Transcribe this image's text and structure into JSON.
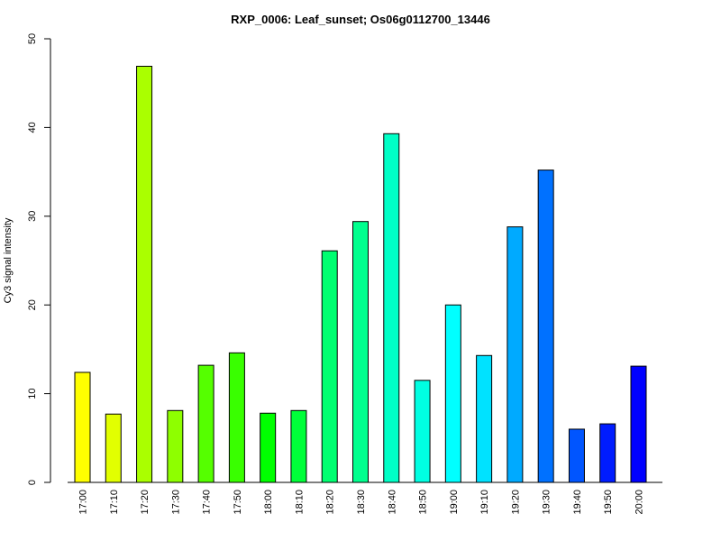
{
  "chart_data": {
    "type": "bar",
    "title": "RXP_0006: Leaf_sunset; Os06g0112700_13446",
    "xlabel": "",
    "ylabel": "Cy3 signal intensity",
    "ylim": [
      0,
      50
    ],
    "yticks": [
      "0",
      "10",
      "20",
      "30",
      "40",
      "50"
    ],
    "grid": false,
    "categories": [
      "17:00",
      "17:10",
      "17:20",
      "17:30",
      "17:40",
      "17:50",
      "18:00",
      "18:10",
      "18:20",
      "18:30",
      "18:40",
      "18:50",
      "19:00",
      "19:10",
      "19:20",
      "19:30",
      "19:40",
      "19:50",
      "20:00"
    ],
    "values": [
      12.4,
      7.7,
      46.9,
      8.1,
      13.2,
      14.6,
      7.8,
      8.1,
      26.1,
      29.4,
      39.3,
      11.5,
      20.0,
      14.3,
      28.8,
      35.2,
      6.0,
      6.6,
      13.1
    ],
    "colors": [
      "#FFFF00",
      "#E2FF00",
      "#AAFF00",
      "#8EFF00",
      "#55FF00",
      "#39FF00",
      "#00FF00",
      "#00FF39",
      "#00FF71",
      "#00FF8E",
      "#00FFC6",
      "#00FFE2",
      "#00FFFF",
      "#00E2FF",
      "#00AAFF",
      "#0071FF",
      "#0055FF",
      "#001CFF",
      "#0000FF"
    ]
  }
}
